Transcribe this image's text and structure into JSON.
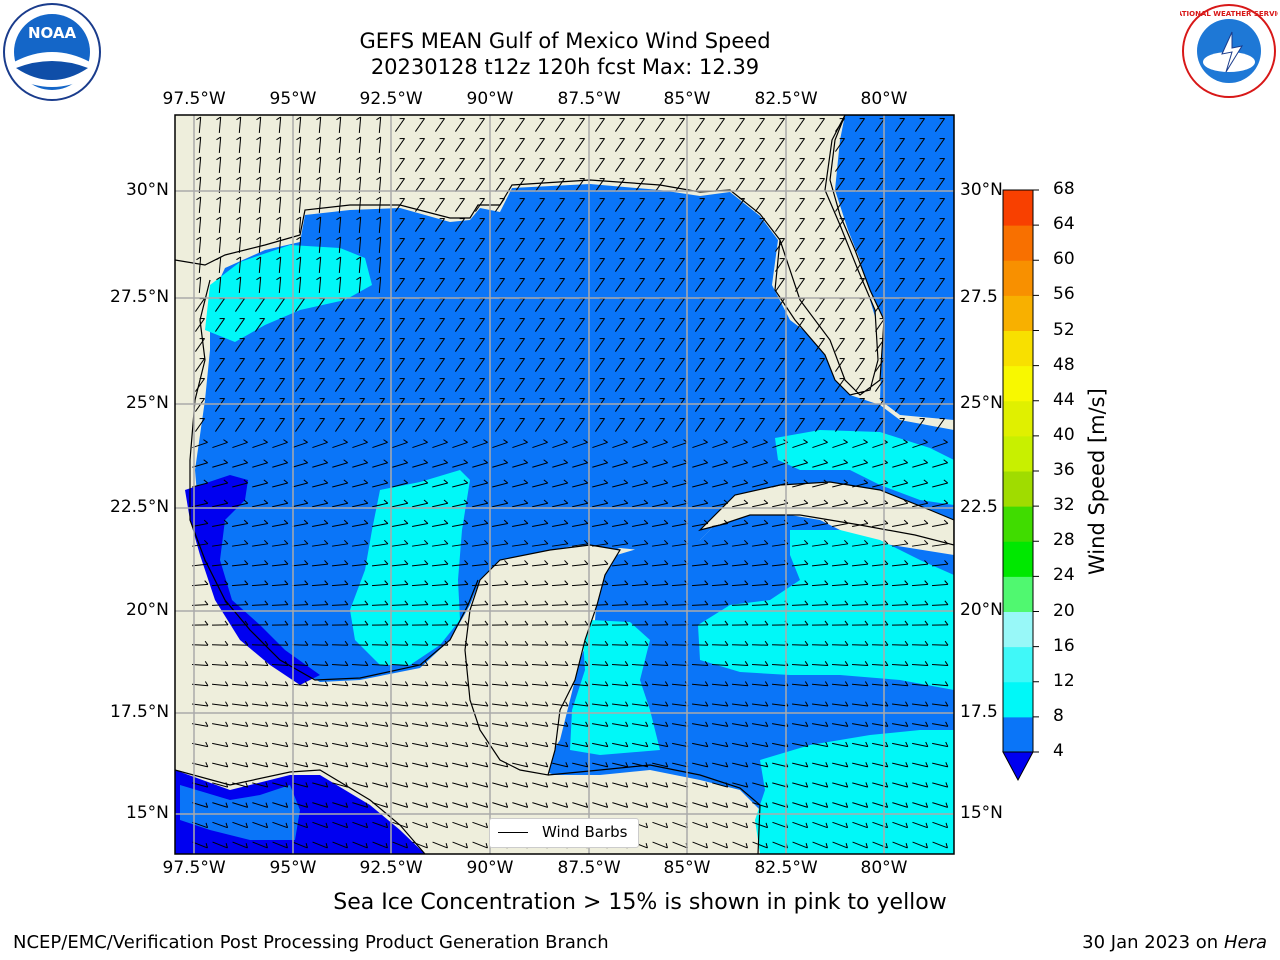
{
  "title": {
    "line1": "GEFS MEAN Gulf of Mexico Wind Speed",
    "line2": "20230128 t12z 120h fcst   Max: 12.39"
  },
  "map": {
    "lon_labels": [
      "97.5°W",
      "95°W",
      "92.5°W",
      "90°W",
      "87.5°W",
      "85°W",
      "82.5°W",
      "80°W"
    ],
    "lat_labels": [
      "30°N",
      "27.5°N",
      "25°N",
      "22.5°N",
      "20°N",
      "17.5°N",
      "15°N"
    ],
    "lat_labels_right": [
      "30°N",
      "27.5",
      "25°N",
      "22.5",
      "20°N",
      "17.5",
      "15°N"
    ],
    "legend_label": "Wind Barbs",
    "colors": {
      "land": "#eeeedc",
      "ocean_4_8": "#0a75f8",
      "ocean_8_12": "#00f8f8",
      "ocean_below_4": "#0000f0",
      "grid": "#aaaaaa"
    }
  },
  "colorbar": {
    "label": "Wind Speed [m/s]",
    "ticks": [
      "4",
      "8",
      "12",
      "16",
      "20",
      "24",
      "28",
      "32",
      "36",
      "40",
      "44",
      "48",
      "52",
      "56",
      "60",
      "64",
      "68"
    ],
    "colors": [
      "#0a75f8",
      "#00f8f8",
      "#40f8f8",
      "#98f8f8",
      "#50f870",
      "#00e800",
      "#40dc00",
      "#a0dc00",
      "#c8f000",
      "#e0f000",
      "#f8f800",
      "#f8e000",
      "#f8b000",
      "#f89000",
      "#f87000",
      "#f84000",
      "#f81000"
    ],
    "extend_color": "#0000f0"
  },
  "note": "Sea Ice Concentration > 15% is shown in pink to yellow",
  "footer": {
    "left": "NCEP/EMC/Verification Post Processing Product Generation Branch",
    "right_date": "30 Jan 2023 on",
    "right_host": "Hera"
  },
  "logos": {
    "noaa": "NOAA",
    "nws": "NATIONAL WEATHER SERVICE"
  }
}
